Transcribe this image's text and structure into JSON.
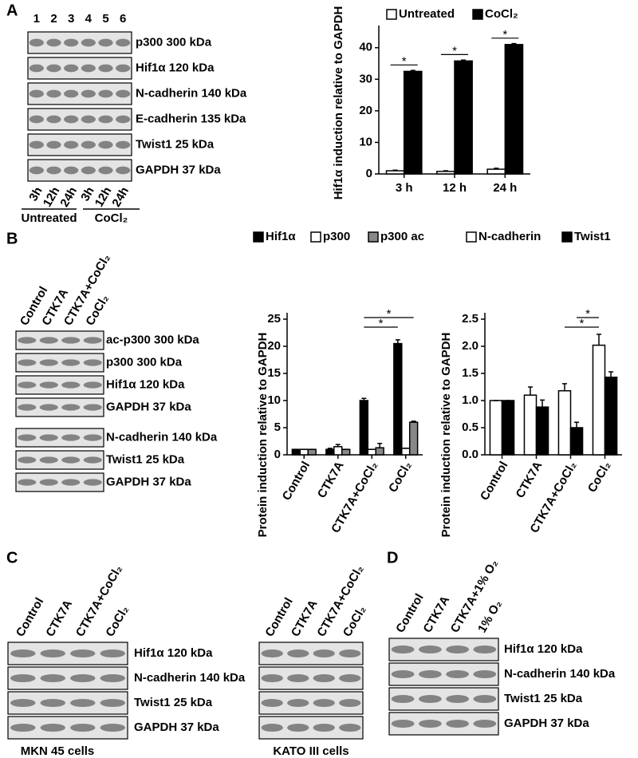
{
  "panel_letters": [
    "A",
    "B",
    "C",
    "D"
  ],
  "blots": [
    {
      "lanes": [
        "1",
        "2",
        "3",
        "4",
        "5",
        "6"
      ],
      "bands": [
        "p300 300 kDa",
        "Hif1α 120 kDa",
        "N-cadherin 140 kDa",
        "E-cadherin 135 kDa",
        "Twist1 25 kDa",
        "GAPDH 37 kDa"
      ],
      "conditions": [
        "3h",
        "12h",
        "24h",
        "3h",
        "12h",
        "24h"
      ],
      "groups": [
        "Untreated",
        "CoCl₂"
      ]
    },
    {
      "lanes": [
        "Control",
        "CTK7A",
        "CTK7A+CoCl₂",
        "CoCl₂"
      ],
      "bands": [
        "ac-p300 300 kDa",
        "p300 300 kDa",
        "Hif1α 120 kDa",
        "GAPDH  37 kDa",
        "N-cadherin 140 kDa",
        "Twist1 25 kDa",
        "GAPDH 37 kDa"
      ]
    },
    {
      "lanes": [
        "Control",
        "CTK7A",
        "CTK7A+CoCl₂",
        "CoCl₂"
      ],
      "bands": [
        "Hif1α 120 kDa",
        "N-cadherin 140 kDa",
        "Twist1 25 kDa",
        "GAPDH 37 kDa"
      ],
      "caption": "MKN 45 cells"
    },
    {
      "lanes": [
        "Control",
        "CTK7A",
        "CTK7A+CoCl₂",
        "CoCl₂"
      ],
      "caption": "KATO III cells"
    },
    {
      "lanes": [
        "Control",
        "CTK7A",
        "CTK7A+1% O₂",
        "1% O₂"
      ],
      "bands": [
        "Hif1α 120 kDa",
        "N-cadherin 140 kDa",
        "Twist1 25 kDa",
        "GAPDH  37 kDa"
      ]
    }
  ],
  "chart_data": [
    {
      "type": "bar",
      "y_label": "Hif1α  induction relative to GAPDH",
      "categories": [
        "3 h",
        "12 h",
        "24 h"
      ],
      "series": [
        {
          "name": "Untreated",
          "color": "#ffffff",
          "values": [
            1,
            0.8,
            1.5
          ],
          "errors": [
            0.2,
            0.2,
            0.3
          ]
        },
        {
          "name": "CoCl₂",
          "color": "#000000",
          "values": [
            32.5,
            35.8,
            41
          ],
          "errors": [
            0.3,
            0.3,
            0.3
          ]
        }
      ],
      "ylim": [
        0,
        45
      ],
      "yticks": [
        0,
        10,
        20,
        30,
        40
      ],
      "annotations": [
        "*",
        "*",
        "*"
      ]
    },
    {
      "type": "bar",
      "y_label": "Protein  induction relative to GAPDH",
      "categories": [
        "Control",
        "CTK7A",
        "CTK7A+CoCl₂",
        "CoCl₂"
      ],
      "series": [
        {
          "name": "Hif1α",
          "color": "#000000",
          "values": [
            1,
            1,
            10,
            20.5
          ],
          "errors": [
            0,
            0.2,
            0.4,
            0.7
          ]
        },
        {
          "name": "p300",
          "color": "#ffffff",
          "values": [
            1,
            1.5,
            1,
            1.2
          ],
          "errors": [
            0,
            0.4,
            0,
            0
          ]
        },
        {
          "name": "p300 ac",
          "color": "#888888",
          "values": [
            1,
            1,
            1.3,
            6
          ],
          "errors": [
            0,
            0,
            0.8,
            0.2
          ]
        }
      ],
      "ylim": [
        0,
        25
      ],
      "yticks": [
        0,
        5,
        10,
        15,
        20,
        25
      ],
      "annotations": [
        "*",
        "*"
      ]
    },
    {
      "type": "bar",
      "y_label": "Protein  induction relative to GAPDH",
      "categories": [
        "Control",
        "CTK7A",
        "CTK7A+CoCl₂",
        "CoCl₂"
      ],
      "series": [
        {
          "name": "N-cadherin",
          "color": "#ffffff",
          "values": [
            1,
            1.1,
            1.18,
            2.02
          ],
          "errors": [
            0,
            0.15,
            0.13,
            0.2
          ]
        },
        {
          "name": "Twist1",
          "color": "#000000",
          "values": [
            1,
            0.88,
            0.5,
            1.43
          ],
          "errors": [
            0,
            0.13,
            0.1,
            0.1
          ]
        }
      ],
      "ylim": [
        0,
        2.5
      ],
      "yticks": [
        {
          "value": 0,
          "label": "0.0"
        },
        0.5,
        {
          "value": 1,
          "label": "1.0"
        },
        1.5,
        {
          "value": 2,
          "label": "2.0"
        },
        2.5
      ],
      "annotations": [
        "*",
        "*"
      ]
    }
  ]
}
